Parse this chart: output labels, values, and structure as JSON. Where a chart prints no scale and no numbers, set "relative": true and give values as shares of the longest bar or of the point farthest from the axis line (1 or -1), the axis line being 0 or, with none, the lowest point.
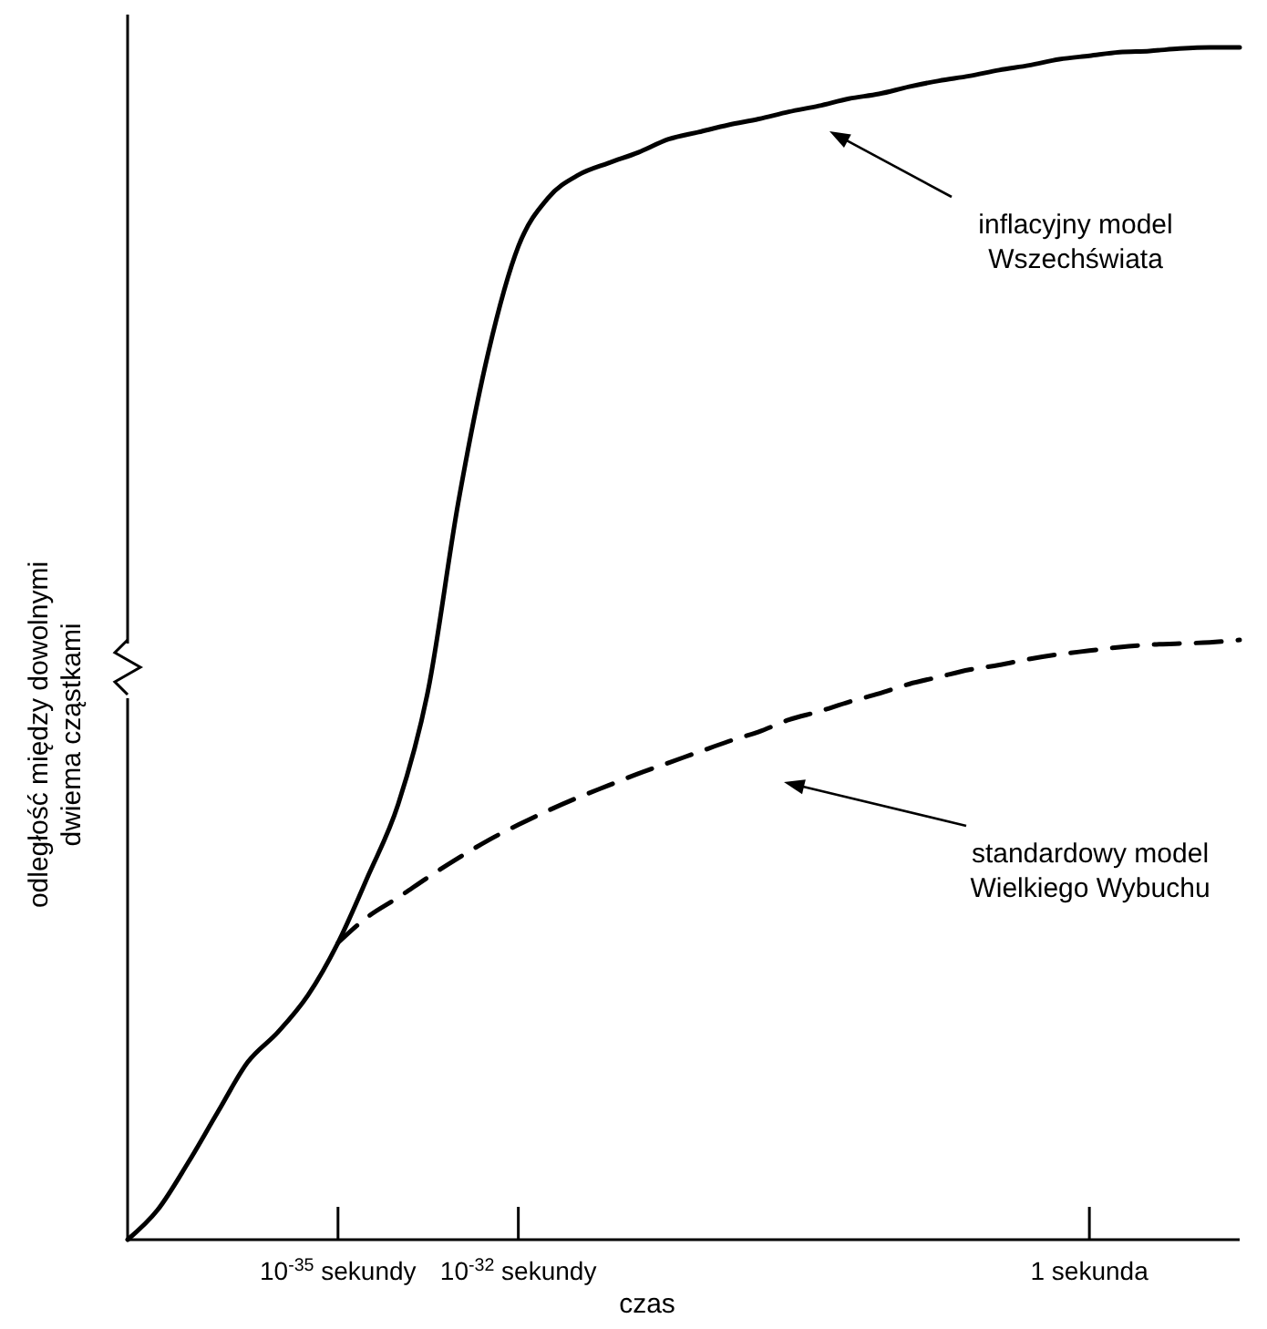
{
  "chart_data": {
    "type": "line",
    "relative": true,
    "xlabel": "czas",
    "ylabel": "odległość między dowolnymi\ndwiema cząstkami",
    "categories": [
      null,
      null,
      null,
      null,
      null,
      null,
      null,
      "10$^{-35}$ sekundy",
      null,
      null,
      null,
      null,
      null,
      "10$^{-32}$ sekundy",
      null,
      null,
      null,
      null,
      null,
      null,
      null,
      null,
      null,
      null,
      null,
      null,
      null,
      null,
      null,
      null,
      null,
      null,
      "1 sekunda",
      null,
      null,
      null,
      null,
      null
    ],
    "series": [
      {
        "color": "#000000",
        "line_style": "solid",
        "values": [
          0,
          0.025,
          0.064,
          0.107,
          0.149,
          0.174,
          0.205,
          0.249,
          0.305,
          0.365,
          0.461,
          0.618,
          0.744,
          0.833,
          0.874,
          0.893,
          0.903,
          0.912,
          0.923,
          0.929,
          0.935,
          0.94,
          0.946,
          0.951,
          0.957,
          0.961,
          0.967,
          0.972,
          0.976,
          0.981,
          0.985,
          0.99,
          0.993,
          0.996,
          0.997,
          0.999,
          1.0,
          1.0
        ]
      },
      {
        "color": "#000000",
        "line_style": "dashed",
        "values": [
          null,
          null,
          null,
          null,
          null,
          null,
          null,
          0.249,
          0.271,
          0.287,
          0.304,
          0.32,
          0.335,
          0.348,
          0.36,
          0.371,
          0.381,
          0.391,
          0.4,
          0.409,
          0.418,
          0.426,
          0.436,
          0.443,
          0.451,
          0.458,
          0.466,
          0.472,
          0.478,
          0.482,
          0.487,
          0.491,
          0.494,
          0.497,
          0.499,
          0.5,
          0.501,
          0.503
        ]
      }
    ],
    "annotations": [
      "inflacyjny model\nWszechświata",
      "standardowy model\nWielkiego Wybuchu"
    ],
    "marker": "none"
  }
}
